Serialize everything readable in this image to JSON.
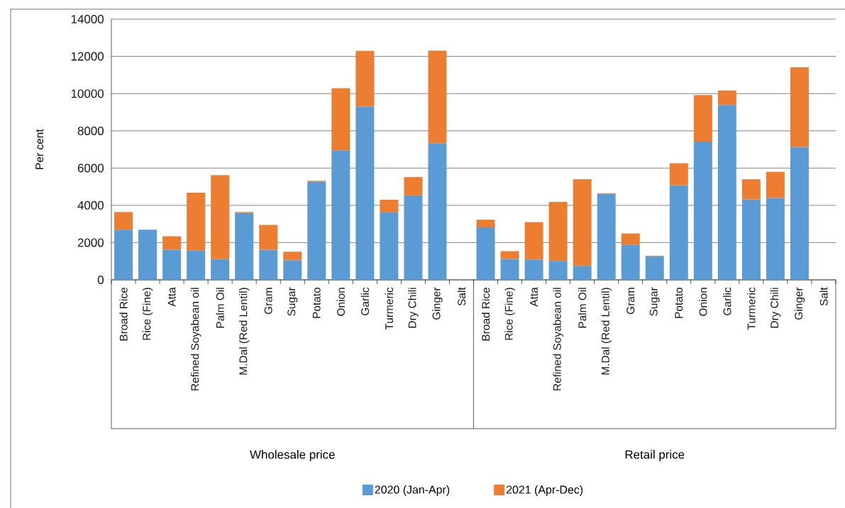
{
  "chart_data": {
    "type": "bar",
    "stacked": true,
    "ylabel": "Per cent",
    "categories": [
      "Broad Rice",
      "Rice (Fine)",
      "Atta",
      "Refined Soyabean oil",
      "Palm Oil",
      "M.Dal (Red Lentil)",
      "Gram",
      "Sugar",
      "Potato",
      "Onion",
      "Garlic",
      "Turmeric",
      "Dry Chili",
      "Ginger",
      "Salt",
      "Broad Rice",
      "Rice (Fine)",
      "Atta",
      "Refined Soyabean oil",
      "Palm Oil",
      "M.Dal (Red Lentil)",
      "Gram",
      "Sugar",
      "Potato",
      "Onion",
      "Garlic",
      "Turmeric",
      "Dry Chili",
      "Ginger",
      "Salt"
    ],
    "series": [
      {
        "name": "2020 (Jan-Apr)",
        "color": "#5b9bd5",
        "values": [
          2690,
          2690,
          1620,
          1570,
          1110,
          3580,
          1610,
          1050,
          5260,
          6950,
          9300,
          3620,
          4530,
          7330,
          0,
          2810,
          1120,
          1090,
          1020,
          750,
          4610,
          1870,
          1250,
          5070,
          7420,
          9390,
          4310,
          4390,
          7130,
          0
        ]
      },
      {
        "name": "2021 (Apr-Dec)",
        "color": "#ed7d31",
        "values": [
          950,
          null,
          720,
          3110,
          4510,
          60,
          1340,
          460,
          60,
          3340,
          3000,
          680,
          990,
          4980,
          0,
          420,
          420,
          2010,
          3160,
          4650,
          40,
          620,
          40,
          1190,
          2500,
          780,
          1090,
          1410,
          4280,
          0
        ]
      }
    ],
    "ylim": [
      0,
      14000
    ],
    "yticks": [
      0,
      2000,
      4000,
      6000,
      8000,
      10000,
      12000,
      14000
    ],
    "grid": "y",
    "legend": "bottom",
    "annotations": [
      "Wholesale price",
      "Retail price"
    ]
  }
}
